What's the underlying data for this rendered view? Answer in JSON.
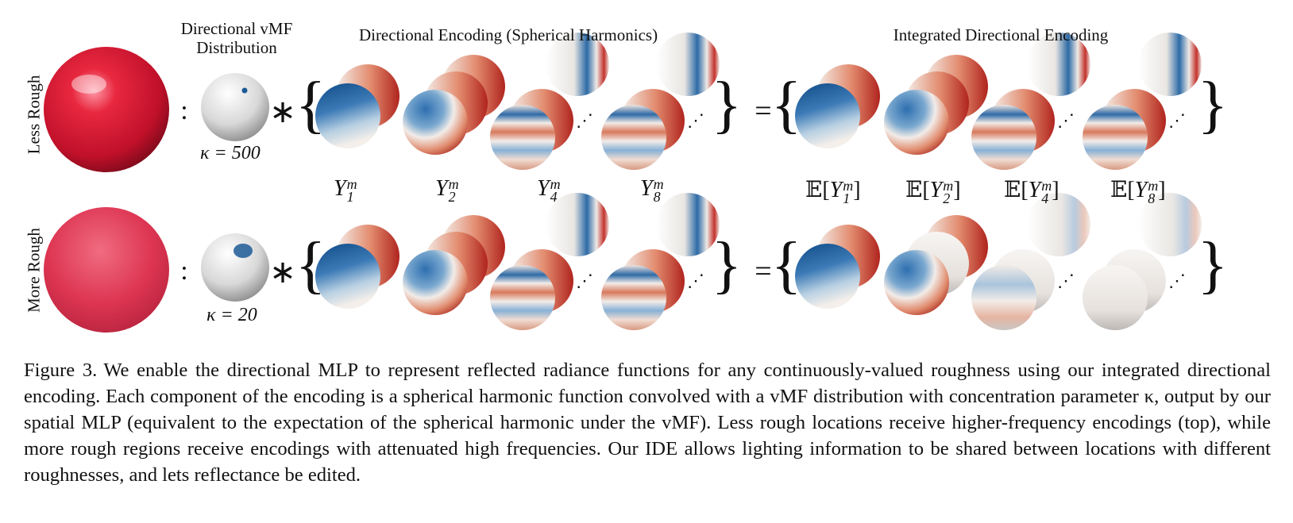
{
  "headers": {
    "vmf": "Directional vMF Distribution",
    "de": "Directional Encoding (Spherical Harmonics)",
    "ide": "Integrated Directional Encoding"
  },
  "rows": [
    {
      "label": "Less Rough",
      "kappa": "κ = 500"
    },
    {
      "label": "More Rough",
      "kappa": "κ = 20"
    }
  ],
  "sh_labels": [
    {
      "base": "Y",
      "sub": "1",
      "sup": "m"
    },
    {
      "base": "Y",
      "sub": "2",
      "sup": "m"
    },
    {
      "base": "Y",
      "sub": "4",
      "sup": "m"
    },
    {
      "base": "Y",
      "sub": "8",
      "sup": "m"
    }
  ],
  "ide_labels": [
    {
      "pre": "𝔼[",
      "base": "Y",
      "sub": "1",
      "sup": "m",
      "post": "]"
    },
    {
      "pre": "𝔼[",
      "base": "Y",
      "sub": "2",
      "sup": "m",
      "post": "]"
    },
    {
      "pre": "𝔼[",
      "base": "Y",
      "sub": "4",
      "sup": "m",
      "post": "]"
    },
    {
      "pre": "𝔼[",
      "base": "Y",
      "sub": "8",
      "sup": "m",
      "post": "]"
    }
  ],
  "symbols": {
    "colon": ":",
    "convolve": "∗",
    "equals": "=",
    "lbrace": "{",
    "rbrace": "}",
    "ellipsis": "⋰"
  },
  "colors": {
    "red_sphere": "#d81e3a",
    "blue": "#1d5a96",
    "red": "#c0262b",
    "white": "#f2f0ee"
  },
  "caption": {
    "figure_number": "Figure 3.",
    "text": "We enable the directional MLP to represent reflected radiance functions for any continuously-valued roughness using our integrated directional encoding. Each component of the encoding is a spherical harmonic function convolved with a vMF distribution with concentration parameter κ, output by our spatial MLP (equivalent to the expectation of the spherical harmonic under the vMF). Less rough locations receive higher-frequency encodings (top), while more rough regions receive encodings with attenuated high frequencies. Our IDE allows lighting information to be shared between locations with different roughnesses, and lets reflectance be edited."
  }
}
